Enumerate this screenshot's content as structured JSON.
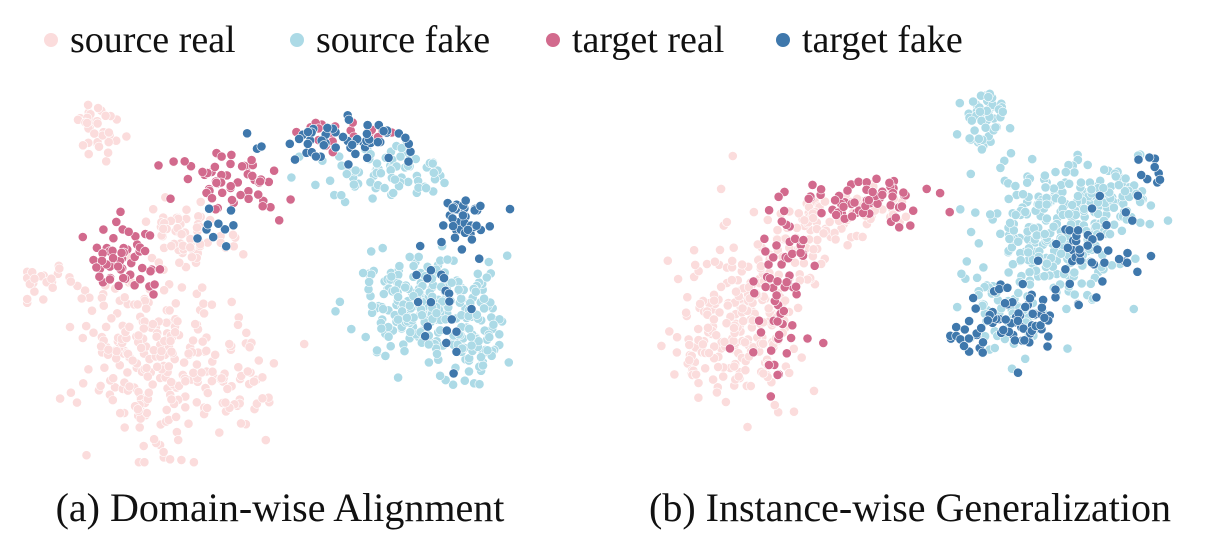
{
  "colors": {
    "source_real": "#fbdcdc",
    "source_fake": "#acdae6",
    "target_real": "#d26a8d",
    "target_fake": "#3f78ac",
    "dot_stroke": "#ffffff"
  },
  "legend": [
    {
      "key": "source_real",
      "label": "source real"
    },
    {
      "key": "source_fake",
      "label": "source fake"
    },
    {
      "key": "target_real",
      "label": "target real"
    },
    {
      "key": "target_fake",
      "label": "target fake"
    }
  ],
  "chart_data": [
    {
      "type": "scatter",
      "caption": "(a) Domain-wise Alignment",
      "xlim": [
        0,
        100
      ],
      "ylim": [
        0,
        100
      ],
      "grid": false,
      "legend_placement": "top",
      "clusters": [
        {
          "series": "source_real",
          "cx": 15,
          "cy": 90,
          "sx": 3,
          "sy": 5,
          "n": 40
        },
        {
          "series": "source_real",
          "cx": 25,
          "cy": 28,
          "sx": 9,
          "sy": 15,
          "n": 230
        },
        {
          "series": "source_real",
          "cx": 32,
          "cy": 62,
          "sx": 5,
          "sy": 6,
          "n": 60
        },
        {
          "series": "source_real",
          "cx": 6,
          "cy": 48,
          "sx": 5,
          "sy": 3,
          "n": 25
        },
        {
          "series": "source_real",
          "cx": 40,
          "cy": 20,
          "sx": 6,
          "sy": 9,
          "n": 55
        },
        {
          "series": "target_real",
          "cx": 20,
          "cy": 55,
          "sx": 5,
          "sy": 6,
          "n": 55
        },
        {
          "series": "target_real",
          "cx": 40,
          "cy": 75,
          "sx": 8,
          "sy": 6,
          "n": 55
        },
        {
          "series": "target_real",
          "cx": 62,
          "cy": 88,
          "sx": 7,
          "sy": 3,
          "n": 25
        },
        {
          "series": "source_fake",
          "cx": 78,
          "cy": 42,
          "sx": 9,
          "sy": 9,
          "n": 230
        },
        {
          "series": "source_fake",
          "cx": 70,
          "cy": 78,
          "sx": 9,
          "sy": 5,
          "n": 80
        },
        {
          "series": "source_fake",
          "cx": 88,
          "cy": 32,
          "sx": 4,
          "sy": 8,
          "n": 50
        },
        {
          "series": "target_fake",
          "cx": 64,
          "cy": 86,
          "sx": 11,
          "sy": 4,
          "n": 55
        },
        {
          "series": "target_fake",
          "cx": 86,
          "cy": 65,
          "sx": 4,
          "sy": 5,
          "n": 40
        },
        {
          "series": "target_fake",
          "cx": 82,
          "cy": 42,
          "sx": 4,
          "sy": 9,
          "n": 20
        },
        {
          "series": "target_fake",
          "cx": 36,
          "cy": 63,
          "sx": 3,
          "sy": 4,
          "n": 10
        }
      ]
    },
    {
      "type": "scatter",
      "caption": "(b) Instance-wise Generalization",
      "xlim": [
        0,
        100
      ],
      "ylim": [
        0,
        100
      ],
      "grid": false,
      "legend_placement": "top",
      "clusters": [
        {
          "series": "source_real",
          "cx": 18,
          "cy": 40,
          "sx": 8,
          "sy": 15,
          "n": 240
        },
        {
          "series": "source_real",
          "cx": 30,
          "cy": 62,
          "sx": 5,
          "sy": 7,
          "n": 60
        },
        {
          "series": "source_real",
          "cx": 8,
          "cy": 30,
          "sx": 4,
          "sy": 6,
          "n": 20
        },
        {
          "series": "source_real",
          "cx": 42,
          "cy": 68,
          "sx": 6,
          "sy": 4,
          "n": 40
        },
        {
          "series": "target_real",
          "cx": 40,
          "cy": 70,
          "sx": 9,
          "sy": 4,
          "n": 65
        },
        {
          "series": "target_real",
          "cx": 25,
          "cy": 40,
          "sx": 5,
          "sy": 13,
          "n": 45
        },
        {
          "series": "target_real",
          "cx": 27,
          "cy": 62,
          "sx": 4,
          "sy": 6,
          "n": 20
        },
        {
          "series": "source_fake",
          "cx": 76,
          "cy": 62,
          "sx": 9,
          "sy": 12,
          "n": 260
        },
        {
          "series": "source_fake",
          "cx": 64,
          "cy": 92,
          "sx": 3,
          "sy": 5,
          "n": 50
        },
        {
          "series": "source_fake",
          "cx": 88,
          "cy": 72,
          "sx": 5,
          "sy": 5,
          "n": 60
        },
        {
          "series": "source_fake",
          "cx": 67,
          "cy": 40,
          "sx": 6,
          "sy": 8,
          "n": 60
        },
        {
          "series": "target_fake",
          "cx": 70,
          "cy": 40,
          "sx": 7,
          "sy": 6,
          "n": 60
        },
        {
          "series": "target_fake",
          "cx": 84,
          "cy": 58,
          "sx": 6,
          "sy": 7,
          "n": 40
        },
        {
          "series": "target_fake",
          "cx": 60,
          "cy": 34,
          "sx": 3,
          "sy": 4,
          "n": 15
        },
        {
          "series": "target_fake",
          "cx": 94,
          "cy": 77,
          "sx": 3,
          "sy": 3,
          "n": 10
        }
      ]
    }
  ]
}
